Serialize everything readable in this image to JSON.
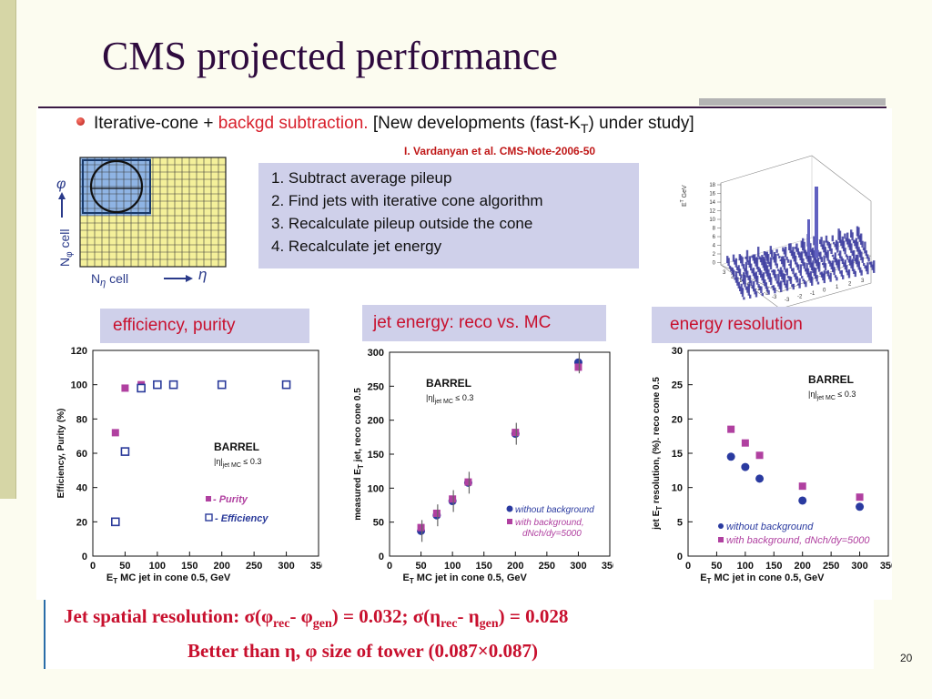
{
  "slide": {
    "title": "CMS projected performance",
    "page_number": "20"
  },
  "intro": {
    "bullet_text_1": "Iterative-cone + ",
    "bullet_text_red": "backgd subtraction.",
    "bullet_text_2": " [New developments (fast-K",
    "bullet_sub": "T",
    "bullet_text_3": ") under study]",
    "citation": "I. Vardanyan et al. CMS-Note-2006-50"
  },
  "steps": [
    "1. Subtract average pileup",
    "2. Find jets with iterative cone algorithm",
    "3. Recalculate pileup outside the cone",
    "4. Recalculate jet energy"
  ],
  "grid_figure": {
    "y_axis_label": "N",
    "y_axis_sub": "φ",
    "y_axis_word": "cell",
    "y_axis_symbol": "φ",
    "x_axis_label": "N",
    "x_axis_sub": "η",
    "x_axis_word": "cell",
    "x_axis_symbol": "η"
  },
  "lego_figure": {
    "ylabel": "E",
    "ylabel_sup": "T",
    "ylabel_unit": "GeV",
    "zticks": [
      "18",
      "16",
      "14",
      "12",
      "10",
      "8",
      "6",
      "4",
      "2",
      "0"
    ],
    "x_ticks": [
      "-3",
      "-2",
      "-1",
      "0",
      "1",
      "2",
      "3"
    ],
    "y_ticks": [
      "3",
      "2",
      "1",
      "0",
      "-1",
      "-2",
      "-3"
    ],
    "colors": {
      "bars": "#3a3a9e",
      "spike": "#6060c0"
    }
  },
  "panel_titles": {
    "efficiency": "efficiency, purity",
    "energy": "jet energy: reco vs. MC",
    "resolution": "energy resolution"
  },
  "chart_data": [
    {
      "type": "scatter",
      "title": "",
      "xlabel": "E",
      "xlabel_sub": "T",
      "xlabel_rest": " MC jet in cone 0.5, GeV",
      "ylabel": "Efficiency, Purity (%)",
      "xlim": [
        0,
        350
      ],
      "ylim": [
        0,
        120
      ],
      "x_ticks": [
        "0",
        "50",
        "100",
        "150",
        "200",
        "250",
        "300",
        "350"
      ],
      "y_ticks": [
        "0",
        "20",
        "40",
        "60",
        "80",
        "100",
        "120"
      ],
      "annotation": "BARREL",
      "annotation_cut_1": "|η|",
      "annotation_cut_sub": "jet MC",
      "annotation_cut_2": "≤ 0.3",
      "series": [
        {
          "name": "- Purity",
          "marker": "square-filled",
          "color": "#b040a0",
          "x": [
            35,
            50,
            75,
            100,
            125,
            200,
            300
          ],
          "y": [
            72,
            98,
            100,
            100,
            100,
            100,
            100
          ]
        },
        {
          "name": "- Efficiency",
          "marker": "square-open",
          "color": "#2a3a9a",
          "x": [
            35,
            50,
            75,
            100,
            125,
            200,
            300
          ],
          "y": [
            20,
            61,
            98,
            100,
            100,
            100,
            100
          ]
        }
      ]
    },
    {
      "type": "scatter",
      "title": "",
      "xlabel": "E",
      "xlabel_sub": "T",
      "xlabel_rest": " MC jet in cone 0.5, GeV",
      "ylabel_1": "measured E",
      "ylabel_sub": "T",
      "ylabel_2": " jet, reco cone 0.5",
      "xlim": [
        0,
        350
      ],
      "ylim": [
        0,
        300
      ],
      "x_ticks": [
        "0",
        "50",
        "100",
        "150",
        "200",
        "250",
        "300",
        "350"
      ],
      "y_ticks": [
        "0",
        "50",
        "100",
        "150",
        "200",
        "250",
        "300"
      ],
      "annotation": "BARREL",
      "annotation_cut_1": "|η|",
      "annotation_cut_sub": "jet MC",
      "annotation_cut_2": "≤ 0.3",
      "series": [
        {
          "name": "without background",
          "marker": "circle",
          "color": "#2a3aa0",
          "x": [
            50,
            75,
            100,
            125,
            200,
            300
          ],
          "y": [
            37,
            60,
            81,
            108,
            180,
            285
          ]
        },
        {
          "name": "with background,",
          "name_line2": "dNch/dy=5000",
          "marker": "square-filled",
          "color": "#b040a0",
          "x": [
            50,
            75,
            100,
            125,
            200,
            300
          ],
          "y": [
            42,
            63,
            84,
            109,
            182,
            278
          ]
        }
      ]
    },
    {
      "type": "scatter",
      "title": "",
      "xlabel": "E",
      "xlabel_sub": "T",
      "xlabel_rest": " MC jet in cone 0.5, GeV",
      "ylabel_1": "jet E",
      "ylabel_sub": "T",
      "ylabel_2": " resolution, (%). reco cone 0.5",
      "xlim": [
        0,
        350
      ],
      "ylim": [
        0,
        30
      ],
      "x_ticks": [
        "0",
        "50",
        "100",
        "150",
        "200",
        "250",
        "300",
        "350"
      ],
      "y_ticks": [
        "0",
        "5",
        "10",
        "15",
        "20",
        "25",
        "30"
      ],
      "annotation": "BARREL",
      "annotation_cut_1": "|η|",
      "annotation_cut_sub": "jet MC",
      "annotation_cut_2": "≤ 0.3",
      "series": [
        {
          "name": "without background",
          "marker": "circle",
          "color": "#2a3aa0",
          "x": [
            75,
            100,
            125,
            200,
            300
          ],
          "y": [
            14.5,
            13,
            11.3,
            8.1,
            7.2
          ]
        },
        {
          "name": "with background, dNch/dy=5000",
          "marker": "square-filled",
          "color": "#b040a0",
          "x": [
            75,
            100,
            125,
            200,
            300
          ],
          "y": [
            18.5,
            16.5,
            14.7,
            10.2,
            8.6
          ]
        }
      ]
    }
  ],
  "bottom": {
    "line1_a": "Jet spatial resolution: σ(φ",
    "line1_sub1": "rec",
    "line1_b": "- φ",
    "line1_sub2": "gen",
    "line1_c": ") = 0.032;  σ(η",
    "line1_sub3": "rec",
    "line1_d": "- η",
    "line1_sub4": "gen",
    "line1_e": ") = 0.028",
    "line2": "Better than η,  φ size of tower (0.087×0.087)"
  }
}
